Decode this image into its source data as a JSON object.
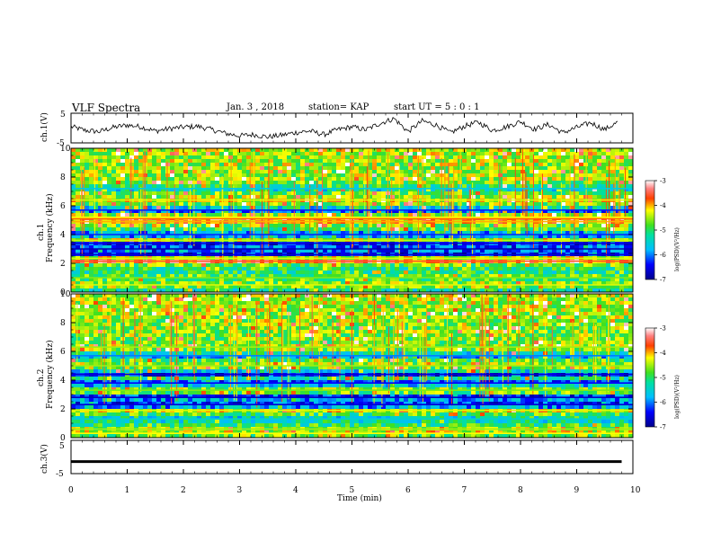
{
  "header": {
    "title": "VLF Spectra",
    "date": "Jan. 3 , 2018",
    "station": "station= KAP",
    "start_ut": "start UT = 5 : 0 : 1"
  },
  "chart_data": [
    {
      "type": "line",
      "panel": "ch1-waveform",
      "ylabel": "ch.1(V)",
      "yticks": [
        "5",
        "-5"
      ],
      "ylim": [
        -5,
        5
      ],
      "x": [
        0,
        0.25,
        0.5,
        0.75,
        1,
        1.25,
        1.5,
        1.75,
        2,
        2.25,
        2.5,
        2.75,
        3,
        3.25,
        3.5,
        3.75,
        4,
        4.25,
        4.5,
        4.75,
        5,
        5.25,
        5.5,
        5.75,
        6,
        6.25,
        6.5,
        6.75,
        7,
        7.25,
        7.5,
        7.75,
        8,
        8.25,
        8.5,
        8.75,
        9,
        9.25,
        9.5,
        9.75
      ],
      "y": [
        0.5,
        -0.8,
        -1.2,
        0.2,
        1.0,
        0.4,
        -1.0,
        -0.2,
        0.3,
        0.6,
        -0.5,
        -1.8,
        -2.6,
        -2.2,
        -3.0,
        -2.4,
        -1.5,
        -1.0,
        -2.2,
        -0.5,
        0.4,
        -0.6,
        1.6,
        3.2,
        -1.2,
        2.4,
        1.0,
        -1.6,
        0.6,
        2.0,
        -0.8,
        0.4,
        2.2,
        -0.4,
        1.2,
        -1.6,
        0.2,
        1.8,
        -0.5,
        2.2
      ]
    },
    {
      "type": "heatmap",
      "panel": "ch1-spectrogram",
      "ylabel_line1": "ch.1",
      "ylabel_line2": "Frequency (kHz)",
      "y_ticks": [
        "0",
        "2",
        "4",
        "6",
        "8",
        "10"
      ],
      "ylim": [
        0,
        10
      ],
      "colorbar": {
        "label": "log(PSD)(V²/Hz)",
        "ticks": [
          "-3",
          "-4",
          "-5",
          "-6",
          "-7"
        ],
        "range": [
          -7,
          -3
        ]
      },
      "bands_khz": [
        {
          "f": 0.5,
          "level": -4.3
        },
        {
          "f": 1.0,
          "level": -4.6
        },
        {
          "f": 2.15,
          "level": -3.6
        },
        {
          "f": 2.35,
          "level": -4.3
        },
        {
          "f": 2.6,
          "level": -6.6
        },
        {
          "f": 3.0,
          "level": -6.8
        },
        {
          "f": 3.4,
          "level": -6.6
        },
        {
          "f": 3.6,
          "level": -4.4
        },
        {
          "f": 4.0,
          "level": -6.3
        },
        {
          "f": 4.9,
          "level": -4.0
        },
        {
          "f": 5.1,
          "level": -3.8
        },
        {
          "f": 5.2,
          "level": -4.2
        },
        {
          "f": 5.7,
          "level": -6.3
        },
        {
          "f": 6.4,
          "level": -4.3
        },
        {
          "f": 7.2,
          "level": -5.6
        }
      ]
    },
    {
      "type": "heatmap",
      "panel": "ch2-spectrogram",
      "ylabel_line1": "ch.2",
      "ylabel_line2": "Frequency (kHz)",
      "y_ticks": [
        "0",
        "2",
        "4",
        "6",
        "8",
        "10"
      ],
      "ylim": [
        0,
        10
      ],
      "colorbar": {
        "label": "log(PSD)(V²/Hz)",
        "ticks": [
          "-3",
          "-4",
          "-5",
          "-6",
          "-7"
        ],
        "range": [
          -7,
          -3
        ]
      },
      "bands_khz": [
        {
          "f": 0.3,
          "level": -4.2
        },
        {
          "f": 0.6,
          "level": -4.5
        },
        {
          "f": 1.3,
          "level": -5.5
        },
        {
          "f": 1.9,
          "level": -4.3
        },
        {
          "f": 2.3,
          "level": -6.6
        },
        {
          "f": 2.8,
          "level": -6.7
        },
        {
          "f": 3.3,
          "level": -4.6
        },
        {
          "f": 3.8,
          "level": -6.4
        },
        {
          "f": 4.4,
          "level": -6.6
        },
        {
          "f": 5.0,
          "level": -4.5
        },
        {
          "f": 5.7,
          "level": -6.0
        },
        {
          "f": 6.3,
          "level": -4.5
        }
      ]
    },
    {
      "type": "line",
      "panel": "ch3-waveform",
      "ylabel": "ch.3(V)",
      "yticks": [
        "5",
        "-5"
      ],
      "ylim": [
        -5,
        5
      ],
      "x": [
        0,
        9.8
      ],
      "y": [
        -1.4,
        -1.4
      ]
    }
  ],
  "x_axis": {
    "label": "Time (min)",
    "ticks": [
      "0",
      "1",
      "2",
      "3",
      "4",
      "5",
      "6",
      "7",
      "8",
      "9",
      "10"
    ],
    "xlim": [
      0,
      10
    ]
  }
}
